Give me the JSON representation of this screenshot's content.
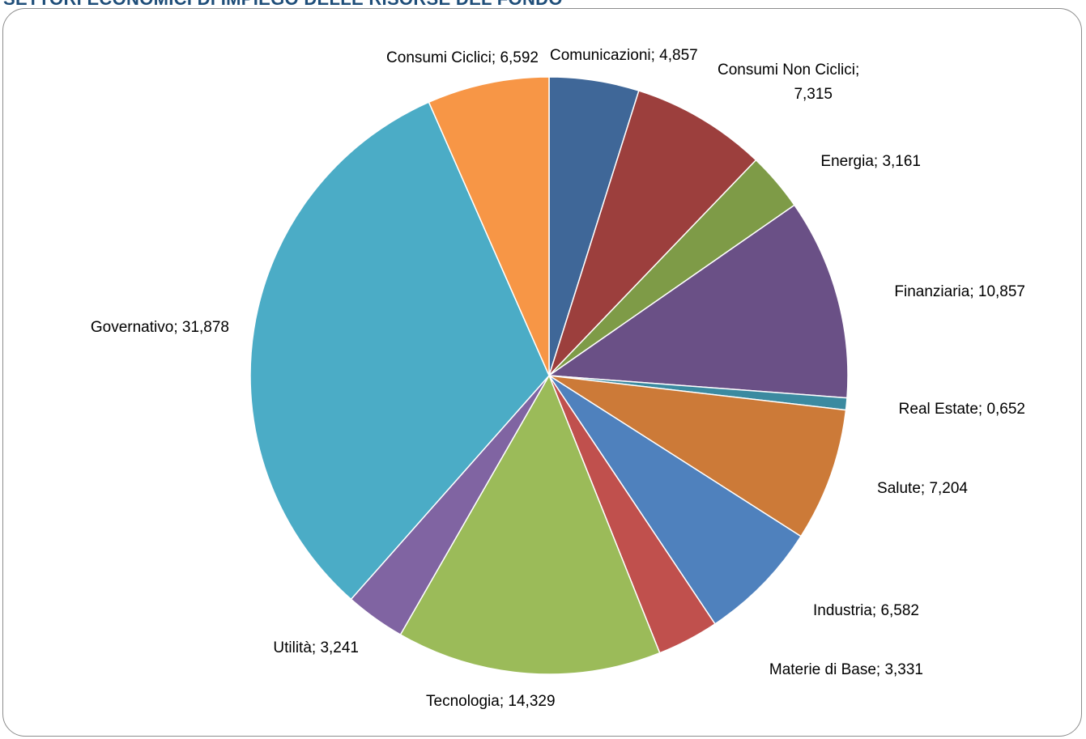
{
  "header": {
    "title": "SETTORI ECONOMICI DI IMPIEGO DELLE RISORSE DEL FONDO"
  },
  "chart_data": {
    "type": "pie",
    "title": "SETTORI ECONOMICI DI IMPIEGO DELLE RISORSE DEL FONDO",
    "slices": [
      {
        "name": "Comunicazioni",
        "value": 4.857,
        "label": "Comunicazioni; 4,857",
        "color": "#3f6798"
      },
      {
        "name": "Consumi Non Ciclici",
        "value": 7.315,
        "label": "Consumi Non Ciclici; 7,315",
        "color": "#9c3f3d"
      },
      {
        "name": "Energia",
        "value": 3.161,
        "label": "Energia; 3,161",
        "color": "#7e9b47"
      },
      {
        "name": "Finanziaria",
        "value": 10.857,
        "label": "Finanziaria; 10,857",
        "color": "#6a5086"
      },
      {
        "name": "Real Estate",
        "value": 0.652,
        "label": "Real Estate; 0,652",
        "color": "#3b8aa0"
      },
      {
        "name": "Salute",
        "value": 7.204,
        "label": "Salute; 7,204",
        "color": "#cc7a38"
      },
      {
        "name": "Industria",
        "value": 6.582,
        "label": "Industria; 6,582",
        "color": "#4f81bd"
      },
      {
        "name": "Materie di Base",
        "value": 3.331,
        "label": "Materie di Base; 3,331",
        "color": "#c0504d"
      },
      {
        "name": "Tecnologia",
        "value": 14.329,
        "label": "Tecnologia; 14,329",
        "color": "#9bbb59"
      },
      {
        "name": "Utilità",
        "value": 3.241,
        "label": "Utilità; 3,241",
        "color": "#8064a2"
      },
      {
        "name": "Governativo",
        "value": 31.878,
        "label": "Governativo; 31,878",
        "color": "#4bacc6"
      },
      {
        "name": "Consumi Ciclici",
        "value": 6.592,
        "label": "Consumi Ciclici; 6,592",
        "color": "#f79646"
      }
    ],
    "start_angle": "top (12 o'clock)",
    "direction": "clockwise",
    "legend": "none"
  }
}
